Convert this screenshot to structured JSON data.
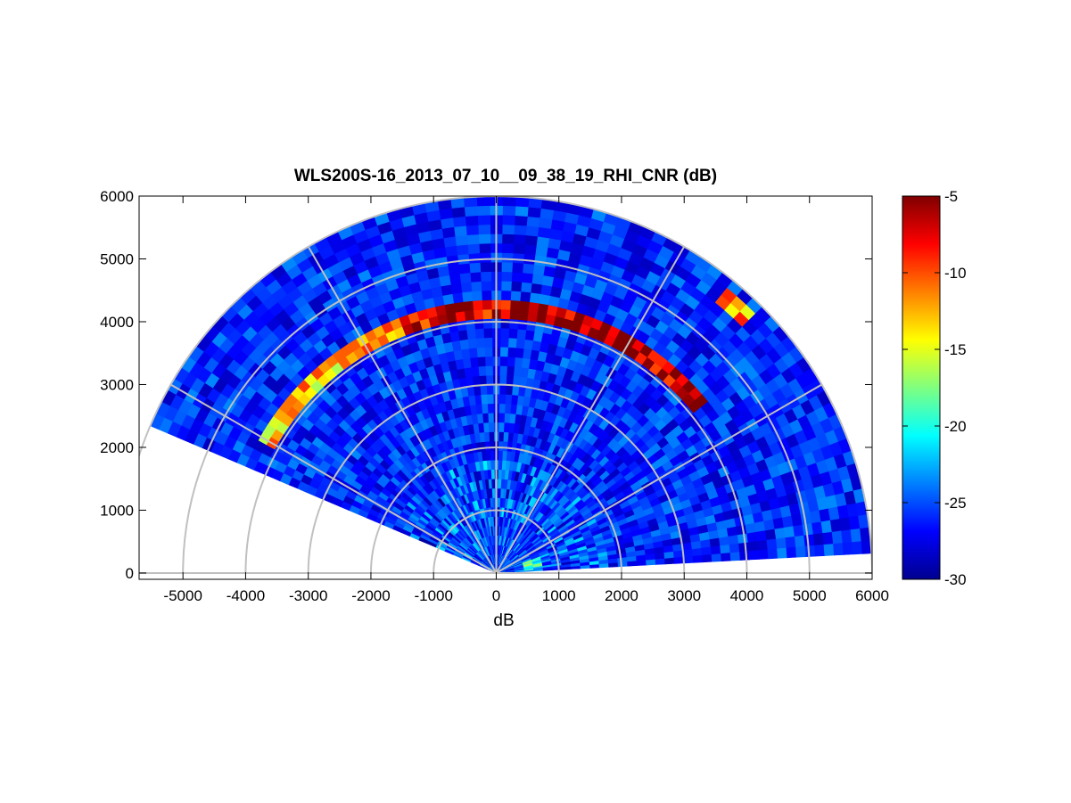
{
  "chart_data": {
    "type": "heatmap",
    "subtype": "polar-rhi-scan",
    "title": "WLS200S-16_2013_07_10__09_38_19_RHI_CNR (dB)",
    "xlabel": "dB",
    "ylabel": "",
    "xlim": [
      -5700,
      6000
    ],
    "ylim": [
      -100,
      6000
    ],
    "x_ticks": [
      -5000,
      -4000,
      -3000,
      -2000,
      -1000,
      0,
      1000,
      2000,
      3000,
      4000,
      5000,
      6000
    ],
    "y_ticks": [
      0,
      1000,
      2000,
      3000,
      4000,
      5000,
      6000
    ],
    "x_tick_labels": [
      "-5000",
      "-4000",
      "-3000",
      "-2000",
      "-1000",
      "0",
      "1000",
      "2000",
      "3000",
      "4000",
      "5000",
      "6000"
    ],
    "y_tick_labels": [
      "0",
      "1000",
      "2000",
      "3000",
      "4000",
      "5000",
      "6000"
    ],
    "colormap": "jet",
    "colorbar": {
      "clim": [
        -30,
        -5
      ],
      "ticks": [
        -5,
        -10,
        -15,
        -20,
        -25,
        -30
      ],
      "tick_labels": [
        "-5",
        "-10",
        "-15",
        "-20",
        "-25",
        "-30"
      ]
    },
    "polar_grid": {
      "range_rings": [
        1000,
        2000,
        3000,
        4000,
        5000,
        6000
      ],
      "spoke_angles_deg": [
        0,
        30,
        60,
        90,
        120,
        150,
        180
      ]
    },
    "scan": {
      "elevation_min_deg": 3,
      "elevation_max_deg": 157,
      "max_range": 6000,
      "background_cnr_db": -26
    },
    "features": [
      {
        "name": "cloud-base layer",
        "range_m": 4200,
        "elevation_deg": [
          40,
          90
        ],
        "cnr_db": -6
      },
      {
        "name": "cloud-base layer",
        "range_m": 4150,
        "elevation_deg": [
          90,
          112
        ],
        "cnr_db": -7
      },
      {
        "name": "broken cloud returns",
        "range_m": 4250,
        "elevation_deg": [
          112,
          150
        ],
        "cnr_db": -13
      },
      {
        "name": "bright patch",
        "range_m": 5700,
        "elevation_deg": [
          45,
          50
        ],
        "cnr_db": -11
      },
      {
        "name": "near-ground returns",
        "range_m": 600,
        "elevation_deg": [
          3,
          20
        ],
        "cnr_db": -20
      }
    ],
    "grid": true,
    "legend": "colorbar-right"
  }
}
